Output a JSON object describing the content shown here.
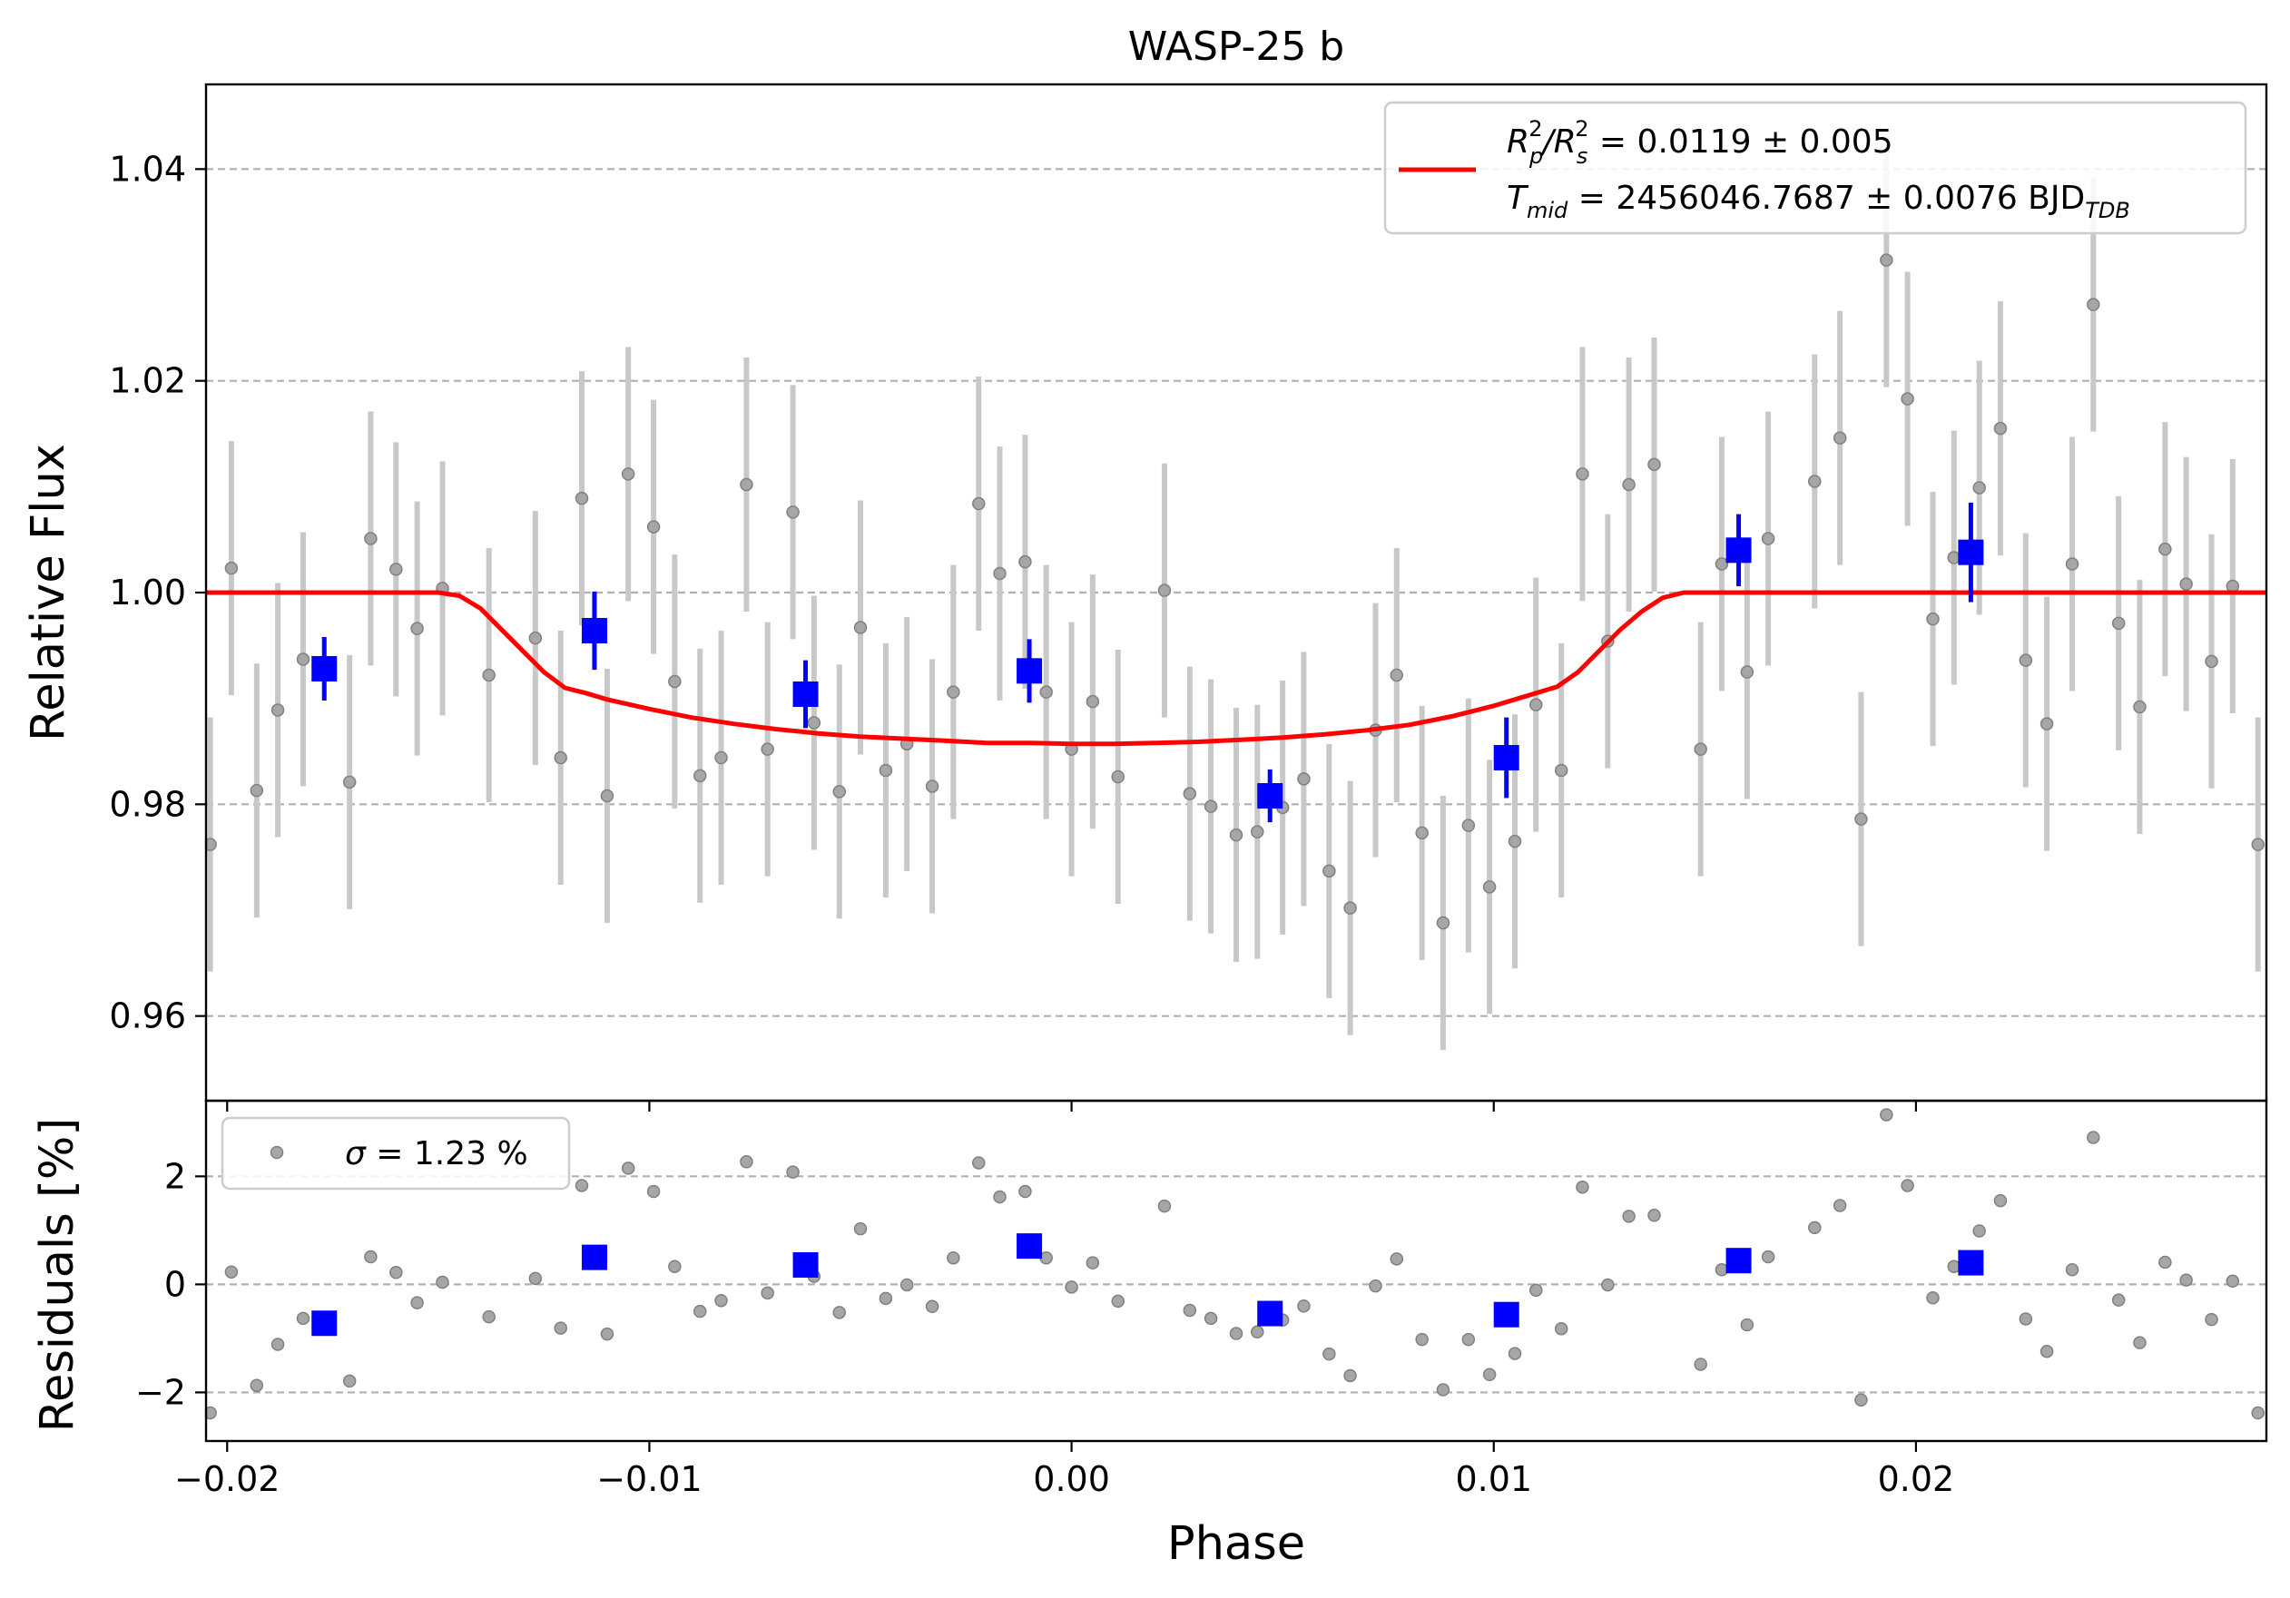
{
  "chart_data": [
    {
      "type": "scatter",
      "title": "WASP-25 b",
      "ylabel": "Relative Flux",
      "xlim": [
        -0.0205,
        0.0283
      ],
      "ylim": [
        0.952,
        1.048
      ],
      "yticks": [
        0.96,
        0.98,
        1.0,
        1.02,
        1.04
      ],
      "ytick_labels": [
        "0.96",
        "0.98",
        "1.00",
        "1.02",
        "1.04"
      ],
      "grid": "y-dashed",
      "legend_position": "upper-right",
      "legend": {
        "line1": {
          "pre": "R",
          "sub1": "p",
          "sup1": "2",
          "mid": "/R",
          "sub2": "s",
          "sup2": "2",
          "post": " = 0.0119 ± 0.005"
        },
        "line2": {
          "pre": "T",
          "sub1": "mid",
          "post": " = 2456046.7687 ± 0.0076 BJD",
          "sub2": "TDB"
        },
        "line_color": "#ff0000"
      },
      "series": [
        {
          "kind": "raw",
          "color": "#a6a6a6",
          "error_color": "#c8c8c8",
          "x": [
            -0.0204,
            -0.0199,
            -0.0193,
            -0.0188,
            -0.0182,
            -0.0171,
            -0.0166,
            -0.016,
            -0.0155,
            -0.0149,
            -0.0138,
            -0.0127,
            -0.0121,
            -0.0116,
            -0.011,
            -0.0105,
            -0.0099,
            -0.0094,
            -0.0088,
            -0.0083,
            -0.0077,
            -0.0072,
            -0.0066,
            -0.0061,
            -0.0055,
            -0.005,
            -0.0044,
            -0.0039,
            -0.0033,
            -0.0028,
            -0.0022,
            -0.0017,
            -0.0011,
            -0.0006,
            0.0,
            0.0005,
            0.0011,
            0.0022,
            0.0028,
            0.0033,
            0.0039,
            0.0044,
            0.005,
            0.0055,
            0.0061,
            0.0066,
            0.0072,
            0.0077,
            0.0083,
            0.0088,
            0.0094,
            0.0099,
            0.0105,
            0.011,
            0.0116,
            0.0121,
            0.0127,
            0.0132,
            0.0138,
            0.0149,
            0.0154,
            0.016,
            0.0165,
            0.0176,
            0.0182,
            0.0187,
            0.0193,
            0.0198,
            0.0204,
            0.0209,
            0.0215,
            0.022,
            0.0226,
            0.0231,
            0.0237,
            0.0242,
            0.0248,
            0.0253,
            0.0259,
            0.0264,
            0.027,
            0.0275,
            0.0281
          ],
          "y": [
            0.9762,
            1.0023,
            0.9813,
            0.9889,
            0.9937,
            0.9821,
            1.0051,
            1.0022,
            0.9966,
            1.0004,
            0.9922,
            0.9957,
            0.9844,
            1.0089,
            0.9808,
            1.0112,
            1.0062,
            0.9916,
            0.9827,
            0.9844,
            1.0102,
            0.9852,
            1.0076,
            0.9877,
            0.9812,
            0.9967,
            0.9832,
            0.9857,
            0.9817,
            0.9906,
            1.0084,
            1.0018,
            1.0029,
            0.9906,
            0.9852,
            0.9897,
            0.9826,
            1.0002,
            0.981,
            0.9798,
            0.9771,
            0.9774,
            0.9797,
            0.9824,
            0.9737,
            0.9702,
            0.987,
            0.9922,
            0.9773,
            0.9688,
            0.978,
            0.9722,
            0.9765,
            0.9894,
            0.9832,
            1.0112,
            0.9954,
            1.0102,
            1.0121,
            0.9852,
            1.0027,
            0.9925,
            1.0051,
            1.0105,
            1.0146,
            0.9786,
            1.0314,
            1.0183,
            0.9975,
            1.0033,
            1.0099,
            1.0155,
            0.9936,
            0.9876,
            1.0027,
            1.0272,
            0.9971,
            0.9892,
            1.0041,
            1.0008,
            0.9935,
            1.0006,
            0.9762
          ],
          "yerr": [
            0.012,
            0.012,
            0.012,
            0.012,
            0.012,
            0.012,
            0.012,
            0.012,
            0.012,
            0.012,
            0.012,
            0.012,
            0.012,
            0.012,
            0.012,
            0.012,
            0.012,
            0.012,
            0.012,
            0.012,
            0.012,
            0.012,
            0.012,
            0.012,
            0.012,
            0.012,
            0.012,
            0.012,
            0.012,
            0.012,
            0.012,
            0.012,
            0.012,
            0.012,
            0.012,
            0.012,
            0.012,
            0.012,
            0.012,
            0.012,
            0.012,
            0.012,
            0.012,
            0.012,
            0.012,
            0.012,
            0.012,
            0.012,
            0.012,
            0.012,
            0.012,
            0.012,
            0.012,
            0.012,
            0.012,
            0.012,
            0.012,
            0.012,
            0.012,
            0.012,
            0.012,
            0.012,
            0.012,
            0.012,
            0.012,
            0.012,
            0.012,
            0.012,
            0.012,
            0.012,
            0.012,
            0.012,
            0.012,
            0.012,
            0.012,
            0.012,
            0.012,
            0.012,
            0.012,
            0.012,
            0.012,
            0.012,
            0.012
          ]
        },
        {
          "kind": "binned",
          "color": "#0000ff",
          "x": [
            -0.0177,
            -0.0113,
            -0.0063,
            -0.001,
            0.0047,
            0.0103,
            0.0158,
            0.0213
          ],
          "y": [
            0.9928,
            0.9964,
            0.9904,
            0.9926,
            0.9808,
            0.9844,
            1.004,
            1.0038
          ],
          "yerr": [
            0.003,
            0.0037,
            0.0032,
            0.003,
            0.0025,
            0.0038,
            0.0034,
            0.0047
          ]
        },
        {
          "kind": "model",
          "color": "#ff0000",
          "x": [
            -0.0205,
            -0.015,
            -0.0145,
            -0.014,
            -0.0135,
            -0.013,
            -0.0125,
            -0.012,
            -0.0115,
            -0.011,
            -0.01,
            -0.009,
            -0.008,
            -0.007,
            -0.006,
            -0.005,
            -0.004,
            -0.003,
            -0.002,
            -0.001,
            0.0,
            0.001,
            0.002,
            0.003,
            0.004,
            0.005,
            0.006,
            0.007,
            0.008,
            0.009,
            0.01,
            0.011,
            0.0115,
            0.012,
            0.0125,
            0.013,
            0.0135,
            0.014,
            0.0145,
            0.015,
            0.0283
          ],
          "y": [
            1.0,
            1.0,
            0.9997,
            0.9985,
            0.9965,
            0.9945,
            0.9925,
            0.991,
            0.9905,
            0.9899,
            0.989,
            0.9882,
            0.9876,
            0.9871,
            0.9867,
            0.9864,
            0.9862,
            0.986,
            0.9858,
            0.9858,
            0.9857,
            0.9857,
            0.9858,
            0.9859,
            0.9861,
            0.9863,
            0.9866,
            0.987,
            0.9875,
            0.9883,
            0.9893,
            0.9905,
            0.9911,
            0.9925,
            0.9945,
            0.9965,
            0.9982,
            0.9995,
            1.0,
            1.0,
            1.0
          ]
        }
      ]
    },
    {
      "type": "scatter",
      "ylabel": "Residuals [%]",
      "xlabel": "Phase",
      "xlim": [
        -0.0205,
        0.0283
      ],
      "ylim": [
        -2.9,
        3.4
      ],
      "xticks": [
        -0.02,
        -0.01,
        0.0,
        0.01,
        0.02
      ],
      "xtick_labels": [
        "−0.02",
        "−0.01",
        "0.00",
        "0.01",
        "0.02"
      ],
      "yticks": [
        -2,
        0,
        2
      ],
      "ytick_labels": [
        "−2",
        "0",
        "2"
      ],
      "grid": "y-dashed",
      "legend_position": "upper-left",
      "legend": {
        "symbol": "σ",
        "text": " = 1.23 %"
      },
      "series": [
        {
          "kind": "residual",
          "color": "#a6a6a6",
          "x": [
            -0.0204,
            -0.0199,
            -0.0193,
            -0.0188,
            -0.0182,
            -0.0171,
            -0.0166,
            -0.016,
            -0.0155,
            -0.0149,
            -0.0138,
            -0.0127,
            -0.0121,
            -0.0116,
            -0.011,
            -0.0105,
            -0.0099,
            -0.0094,
            -0.0088,
            -0.0083,
            -0.0077,
            -0.0072,
            -0.0066,
            -0.0061,
            -0.0055,
            -0.005,
            -0.0044,
            -0.0039,
            -0.0033,
            -0.0028,
            -0.0022,
            -0.0017,
            -0.0011,
            -0.0006,
            0.0,
            0.0005,
            0.0011,
            0.0022,
            0.0028,
            0.0033,
            0.0039,
            0.0044,
            0.005,
            0.0055,
            0.0061,
            0.0066,
            0.0072,
            0.0077,
            0.0083,
            0.0088,
            0.0094,
            0.0099,
            0.0105,
            0.011,
            0.0116,
            0.0121,
            0.0127,
            0.0132,
            0.0138,
            0.0149,
            0.0154,
            0.016,
            0.0165,
            0.0176,
            0.0182,
            0.0187,
            0.0193,
            0.0198,
            0.0204,
            0.0209,
            0.0215,
            0.022,
            0.0226,
            0.0231,
            0.0237,
            0.0242,
            0.0248,
            0.0253,
            0.0259,
            0.0264,
            0.027,
            0.0275,
            0.0281
          ],
          "y": [
            -2.38,
            0.23,
            -1.87,
            -1.11,
            -0.63,
            -1.79,
            0.51,
            0.22,
            -0.34,
            0.04,
            -0.6,
            0.11,
            -0.81,
            1.83,
            -0.92,
            2.15,
            1.72,
            0.33,
            -0.5,
            -0.3,
            2.27,
            -0.16,
            2.08,
            0.15,
            -0.52,
            1.03,
            -0.26,
            -0.01,
            -0.41,
            0.49,
            2.25,
            1.62,
            1.72,
            0.49,
            -0.05,
            0.4,
            -0.31,
            1.45,
            -0.48,
            -0.63,
            -0.91,
            -0.88,
            -0.66,
            -0.4,
            -1.29,
            -1.69,
            -0.03,
            0.47,
            -1.02,
            -1.95,
            -1.02,
            -1.67,
            -1.28,
            -0.11,
            -0.82,
            1.8,
            -0.01,
            1.26,
            1.28,
            -1.48,
            0.27,
            -0.75,
            0.51,
            1.05,
            1.46,
            -2.14,
            3.14,
            1.83,
            -0.25,
            0.33,
            0.99,
            1.55,
            -0.64,
            -1.24,
            0.27,
            2.72,
            -0.29,
            -1.08,
            0.41,
            0.08,
            -0.65,
            0.06,
            -2.38
          ]
        },
        {
          "kind": "binned",
          "color": "#0000ff",
          "x": [
            -0.0177,
            -0.0113,
            -0.0063,
            -0.001,
            0.0047,
            0.0103,
            0.0158,
            0.0213
          ],
          "y": [
            -0.72,
            0.5,
            0.36,
            0.71,
            -0.54,
            -0.56,
            0.44,
            0.4
          ]
        }
      ]
    }
  ]
}
